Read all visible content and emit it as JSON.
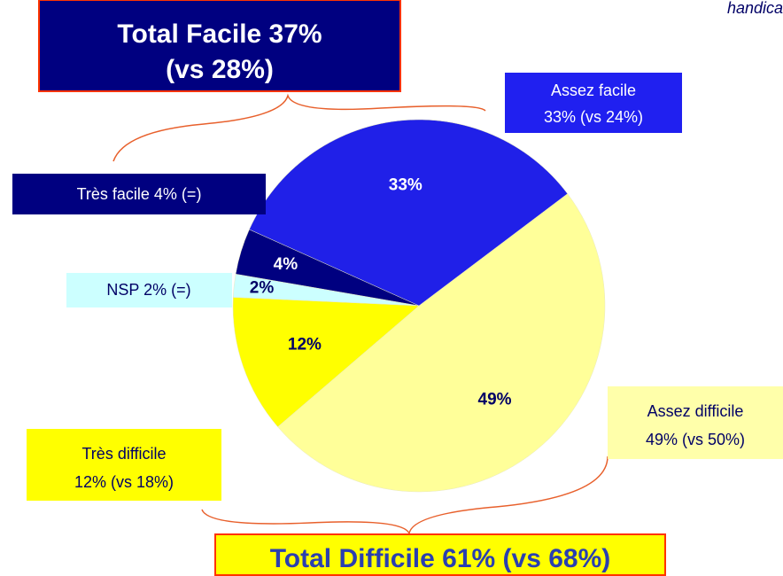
{
  "chart_data": {
    "type": "pie",
    "values": [
      49,
      12,
      2,
      4,
      33
    ],
    "value_labels": [
      "49%",
      "12%",
      "2%",
      "4%",
      "33%"
    ],
    "colors": [
      "#ffff99",
      "#ffff00",
      "#ccffff",
      "#000080",
      "#2020e8"
    ],
    "label_colors": [
      "#000066",
      "#000066",
      "#000066",
      "#ffffff",
      "#ffffff"
    ],
    "corner_text": "handica",
    "callouts": {
      "total_facile": [
        "Total Facile  37%",
        "(vs 28%)"
      ],
      "assez_facile": [
        "Assez facile",
        "33% (vs 24%)"
      ],
      "tres_facile": [
        "Très facile 4% (=)"
      ],
      "nsp": [
        "NSP 2% (=)"
      ],
      "assez_difficile": [
        "Assez difficile",
        "49% (vs 50%)"
      ],
      "tres_difficile": [
        "Très difficile",
        "12% (vs 18%)"
      ],
      "total_difficile": [
        "Total Difficile  61%  (vs 68%)"
      ]
    }
  }
}
